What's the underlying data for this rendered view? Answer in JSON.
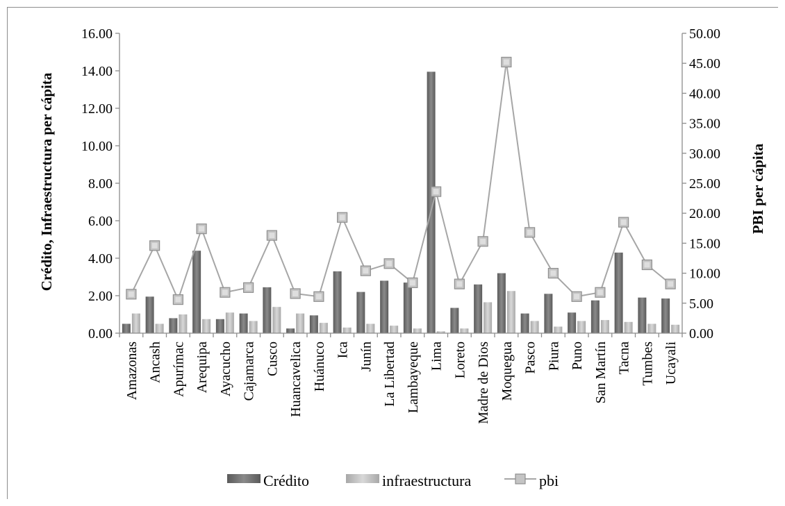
{
  "chart_data": {
    "type": "bar",
    "categories": [
      "Amazonas",
      "Ancash",
      "Apurímac",
      "Arequipa",
      "Ayacucho",
      "Cajamarca",
      "Cusco",
      "Huancavelica",
      "Huánuco",
      "Ica",
      "Junín",
      "La Libertad",
      "Lambayeque",
      "Lima",
      "Loreto",
      "Madre de Dios",
      "Moquegua",
      "Pasco",
      "Piura",
      "Puno",
      "San Martín",
      "Tacna",
      "Tumbes",
      "Ucayali"
    ],
    "series": [
      {
        "name": "Crédito",
        "type": "bar",
        "axis": "left",
        "color": "#6e6e6e",
        "values": [
          0.5,
          1.95,
          0.8,
          4.4,
          0.75,
          1.05,
          2.45,
          0.25,
          0.95,
          3.3,
          2.2,
          2.8,
          2.7,
          13.95,
          1.35,
          2.6,
          3.2,
          1.05,
          2.1,
          1.1,
          1.75,
          4.3,
          1.9,
          1.85
        ]
      },
      {
        "name": "infraestructura",
        "type": "bar",
        "axis": "left",
        "color": "#bdbdbd",
        "values": [
          1.05,
          0.5,
          1.0,
          0.75,
          1.1,
          0.65,
          1.4,
          1.05,
          0.55,
          0.3,
          0.5,
          0.4,
          0.25,
          0.1,
          0.25,
          1.65,
          2.25,
          0.65,
          0.35,
          0.65,
          0.7,
          0.6,
          0.5,
          0.45
        ]
      },
      {
        "name": "pbi",
        "type": "line",
        "axis": "right",
        "color": "#a6a6a6",
        "values": [
          6.5,
          14.6,
          5.6,
          17.4,
          6.8,
          7.6,
          16.3,
          6.6,
          6.1,
          19.3,
          10.4,
          11.6,
          8.4,
          23.6,
          8.2,
          15.3,
          45.2,
          16.8,
          10.0,
          6.1,
          6.8,
          18.5,
          11.4,
          8.2
        ]
      }
    ],
    "ylabel": "Crédito, Infraestructura per cápita",
    "y2label": "PBI per cápita",
    "ylim": [
      0,
      16
    ],
    "y2lim": [
      0,
      50
    ],
    "yticks": [
      "0.00",
      "2.00",
      "4.00",
      "6.00",
      "8.00",
      "10.00",
      "12.00",
      "14.00",
      "16.00"
    ],
    "y2ticks": [
      "0.00",
      "5.00",
      "10.00",
      "15.00",
      "20.00",
      "25.00",
      "30.00",
      "35.00",
      "40.00",
      "45.00",
      "50.00"
    ],
    "legend": "bottom",
    "grid": false
  }
}
